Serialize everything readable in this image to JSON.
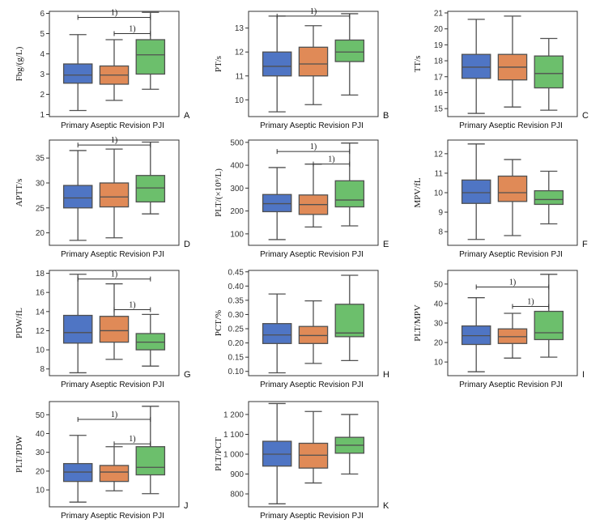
{
  "colors": {
    "primary": "#4f75c4",
    "aseptic": "#e08a57",
    "pji": "#6cbf6c",
    "line": "#505050"
  },
  "chart_data": [
    {
      "panel": "A",
      "type": "box",
      "ylabel": "Fbg/(g/L)",
      "ylim": [
        0.9,
        6.1
      ],
      "yticks": [
        1,
        2,
        3,
        4,
        5,
        6
      ],
      "ytick_labels": [
        "1",
        "2",
        "3",
        "4",
        "5",
        "6"
      ],
      "categories": [
        "Primary",
        "Aseptic Revision",
        "PJI"
      ],
      "boxes": [
        {
          "group": "Primary",
          "whislo": 1.2,
          "q1": 2.55,
          "med": 2.95,
          "q3": 3.5,
          "whishi": 4.95
        },
        {
          "group": "Aseptic Revision",
          "whislo": 1.7,
          "q1": 2.5,
          "med": 2.95,
          "q3": 3.4,
          "whishi": 4.7
        },
        {
          "group": "PJI",
          "whislo": 2.25,
          "q1": 3.0,
          "med": 3.95,
          "q3": 4.7,
          "whishi": 6.05
        }
      ],
      "significance": [
        {
          "from": "Primary",
          "to": "PJI",
          "label": "1)",
          "y": 5.8
        },
        {
          "from": "Aseptic Revision",
          "to": "PJI",
          "label": "1)",
          "y": 5.0
        }
      ]
    },
    {
      "panel": "B",
      "type": "box",
      "ylabel": "PT/s",
      "ylim": [
        9.3,
        13.7
      ],
      "yticks": [
        10,
        11,
        12,
        13
      ],
      "ytick_labels": [
        "10",
        "11",
        "12",
        "13"
      ],
      "categories": [
        "Primary",
        "Aseptic Revision",
        "PJI"
      ],
      "boxes": [
        {
          "group": "Primary",
          "whislo": 9.5,
          "q1": 11.0,
          "med": 11.4,
          "q3": 12.0,
          "whishi": 13.5
        },
        {
          "group": "Aseptic Revision",
          "whislo": 9.8,
          "q1": 11.0,
          "med": 11.5,
          "q3": 12.2,
          "whishi": 13.1
        },
        {
          "group": "PJI",
          "whislo": 10.2,
          "q1": 11.6,
          "med": 12.0,
          "q3": 12.5,
          "whishi": 13.6
        }
      ],
      "significance": [
        {
          "from": "Primary",
          "to": "PJI",
          "label": "1)",
          "y": 13.5
        }
      ]
    },
    {
      "panel": "C",
      "type": "box",
      "ylabel": "TT/s",
      "ylim": [
        14.5,
        21.1
      ],
      "yticks": [
        15,
        16,
        17,
        18,
        19,
        20,
        21
      ],
      "ytick_labels": [
        "15",
        "16",
        "17",
        "18",
        "19",
        "20",
        "21"
      ],
      "categories": [
        "Primary",
        "Aseptic Revision",
        "PJI"
      ],
      "boxes": [
        {
          "group": "Primary",
          "whislo": 14.7,
          "q1": 16.9,
          "med": 17.6,
          "q3": 18.4,
          "whishi": 20.6
        },
        {
          "group": "Aseptic Revision",
          "whislo": 15.1,
          "q1": 16.8,
          "med": 17.6,
          "q3": 18.4,
          "whishi": 20.8
        },
        {
          "group": "PJI",
          "whislo": 14.9,
          "q1": 16.3,
          "med": 17.2,
          "q3": 18.3,
          "whishi": 19.4
        }
      ],
      "significance": []
    },
    {
      "panel": "D",
      "type": "box",
      "ylabel": "APTT/s",
      "ylim": [
        17.5,
        38.6
      ],
      "yticks": [
        20,
        25,
        30,
        35
      ],
      "ytick_labels": [
        "20",
        "25",
        "30",
        "35"
      ],
      "categories": [
        "Primary",
        "Aseptic Revision",
        "PJI"
      ],
      "boxes": [
        {
          "group": "Primary",
          "whislo": 18.5,
          "q1": 25.0,
          "med": 27.0,
          "q3": 29.5,
          "whishi": 36.5
        },
        {
          "group": "Aseptic Revision",
          "whislo": 19.0,
          "q1": 25.2,
          "med": 27.2,
          "q3": 30.0,
          "whishi": 36.8
        },
        {
          "group": "PJI",
          "whislo": 23.8,
          "q1": 26.2,
          "med": 29.0,
          "q3": 31.5,
          "whishi": 38.2
        }
      ],
      "significance": [
        {
          "from": "Primary",
          "to": "PJI",
          "label": "1)",
          "y": 37.6
        }
      ]
    },
    {
      "panel": "E",
      "type": "box",
      "ylabel": "PLT/(×10⁹/L)",
      "ylim": [
        50,
        510
      ],
      "yticks": [
        100,
        200,
        300,
        400,
        500
      ],
      "ytick_labels": [
        "100",
        "200",
        "300",
        "400",
        "500"
      ],
      "categories": [
        "Primary",
        "Aseptic Revision",
        "PJI"
      ],
      "boxes": [
        {
          "group": "Primary",
          "whislo": 75,
          "q1": 197,
          "med": 232,
          "q3": 272,
          "whishi": 390
        },
        {
          "group": "Aseptic Revision",
          "whislo": 130,
          "q1": 185,
          "med": 228,
          "q3": 270,
          "whishi": 405
        },
        {
          "group": "PJI",
          "whislo": 135,
          "q1": 218,
          "med": 248,
          "q3": 332,
          "whishi": 497
        }
      ],
      "significance": [
        {
          "from": "Primary",
          "to": "PJI",
          "label": "1)",
          "y": 460
        },
        {
          "from": "Aseptic Revision",
          "to": "PJI",
          "label": "1)",
          "y": 405
        }
      ]
    },
    {
      "panel": "F",
      "type": "box",
      "ylabel": "MPV/fL",
      "ylim": [
        7.3,
        12.7
      ],
      "yticks": [
        8,
        9,
        10,
        11,
        12
      ],
      "ytick_labels": [
        "8",
        "9",
        "10",
        "11",
        "12"
      ],
      "categories": [
        "Primary",
        "Aseptic Revision",
        "PJI"
      ],
      "boxes": [
        {
          "group": "Primary",
          "whislo": 7.6,
          "q1": 9.45,
          "med": 10.0,
          "q3": 10.65,
          "whishi": 12.5
        },
        {
          "group": "Aseptic Revision",
          "whislo": 7.8,
          "q1": 9.55,
          "med": 10.0,
          "q3": 10.85,
          "whishi": 11.7
        },
        {
          "group": "PJI",
          "whislo": 8.4,
          "q1": 9.4,
          "med": 9.65,
          "q3": 10.1,
          "whishi": 11.1
        }
      ],
      "significance": []
    },
    {
      "panel": "G",
      "type": "box",
      "ylabel": "PDW/fL",
      "ylim": [
        7.3,
        18.3
      ],
      "yticks": [
        8,
        10,
        12,
        14,
        16,
        18
      ],
      "ytick_labels": [
        "8",
        "10",
        "12",
        "14",
        "16",
        "18"
      ],
      "categories": [
        "Primary",
        "Aseptic Revision",
        "PJI"
      ],
      "boxes": [
        {
          "group": "Primary",
          "whislo": 7.6,
          "q1": 10.7,
          "med": 11.8,
          "q3": 13.6,
          "whishi": 17.9
        },
        {
          "group": "Aseptic Revision",
          "whislo": 9.0,
          "q1": 10.8,
          "med": 12.0,
          "q3": 13.5,
          "whishi": 16.9
        },
        {
          "group": "PJI",
          "whislo": 8.3,
          "q1": 10.0,
          "med": 10.8,
          "q3": 11.7,
          "whishi": 13.7
        }
      ],
      "significance": [
        {
          "from": "Primary",
          "to": "PJI",
          "label": "1)",
          "y": 17.4
        },
        {
          "from": "Aseptic Revision",
          "to": "PJI",
          "label": "1)",
          "y": 14.2
        }
      ]
    },
    {
      "panel": "H",
      "type": "box",
      "ylabel": "PCT/%",
      "ylim": [
        0.085,
        0.455
      ],
      "yticks": [
        0.1,
        0.15,
        0.2,
        0.25,
        0.3,
        0.35,
        0.4,
        0.45
      ],
      "ytick_labels": [
        "0.10",
        "0.15",
        "0.20",
        "0.25",
        "0.30",
        "0.35",
        "0.40",
        "0.45"
      ],
      "categories": [
        "Primary",
        "Aseptic Revision",
        "PJI"
      ],
      "boxes": [
        {
          "group": "Primary",
          "whislo": 0.095,
          "q1": 0.198,
          "med": 0.228,
          "q3": 0.268,
          "whishi": 0.372
        },
        {
          "group": "Aseptic Revision",
          "whislo": 0.128,
          "q1": 0.198,
          "med": 0.226,
          "q3": 0.258,
          "whishi": 0.348
        },
        {
          "group": "PJI",
          "whislo": 0.138,
          "q1": 0.222,
          "med": 0.235,
          "q3": 0.336,
          "whishi": 0.438
        }
      ],
      "significance": []
    },
    {
      "panel": "I",
      "type": "box",
      "ylabel": "PLT/MPV",
      "ylim": [
        3,
        57
      ],
      "yticks": [
        10,
        20,
        30,
        40,
        50
      ],
      "ytick_labels": [
        "10",
        "20",
        "30",
        "40",
        "50"
      ],
      "categories": [
        "Primary",
        "Aseptic Revision",
        "PJI"
      ],
      "boxes": [
        {
          "group": "Primary",
          "whislo": 5,
          "q1": 19,
          "med": 23.5,
          "q3": 28.5,
          "whishi": 43
        },
        {
          "group": "Aseptic Revision",
          "whislo": 12,
          "q1": 19.5,
          "med": 23,
          "q3": 27,
          "whishi": 35
        },
        {
          "group": "PJI",
          "whislo": 12.5,
          "q1": 21.5,
          "med": 25,
          "q3": 36,
          "whishi": 55
        }
      ],
      "significance": [
        {
          "from": "Primary",
          "to": "PJI",
          "label": "1)",
          "y": 48.5
        },
        {
          "from": "Aseptic Revision",
          "to": "PJI",
          "label": "1)",
          "y": 38.5
        }
      ]
    },
    {
      "panel": "J",
      "type": "box",
      "ylabel": "PLT/PDW",
      "ylim": [
        1,
        57
      ],
      "yticks": [
        10,
        20,
        30,
        40,
        50
      ],
      "ytick_labels": [
        "10",
        "20",
        "30",
        "40",
        "50"
      ],
      "categories": [
        "Primary",
        "Aseptic Revision",
        "PJI"
      ],
      "boxes": [
        {
          "group": "Primary",
          "whislo": 3.5,
          "q1": 14.5,
          "med": 19.5,
          "q3": 24,
          "whishi": 39
        },
        {
          "group": "Aseptic Revision",
          "whislo": 9.5,
          "q1": 14.5,
          "med": 19.5,
          "q3": 23,
          "whishi": 33
        },
        {
          "group": "PJI",
          "whislo": 8,
          "q1": 18,
          "med": 22,
          "q3": 33,
          "whishi": 54.5
        }
      ],
      "significance": [
        {
          "from": "Primary",
          "to": "PJI",
          "label": "1)",
          "y": 47.5
        },
        {
          "from": "Aseptic Revision",
          "to": "PJI",
          "label": "1)",
          "y": 34.5
        }
      ]
    },
    {
      "panel": "K",
      "type": "box",
      "ylabel": "PLT/PCT",
      "ylim": [
        735,
        1265
      ],
      "yticks": [
        800,
        900,
        1000,
        1100,
        1200
      ],
      "ytick_labels": [
        "800",
        "900",
        "1 000",
        "1 100",
        "1 200"
      ],
      "categories": [
        "Primary",
        "Aseptic Revision",
        "PJI"
      ],
      "boxes": [
        {
          "group": "Primary",
          "whislo": 750,
          "q1": 940,
          "med": 1000,
          "q3": 1065,
          "whishi": 1255
        },
        {
          "group": "Aseptic Revision",
          "whislo": 855,
          "q1": 930,
          "med": 995,
          "q3": 1055,
          "whishi": 1215
        },
        {
          "group": "PJI",
          "whislo": 900,
          "q1": 1005,
          "med": 1045,
          "q3": 1085,
          "whishi": 1200
        }
      ],
      "significance": []
    }
  ]
}
